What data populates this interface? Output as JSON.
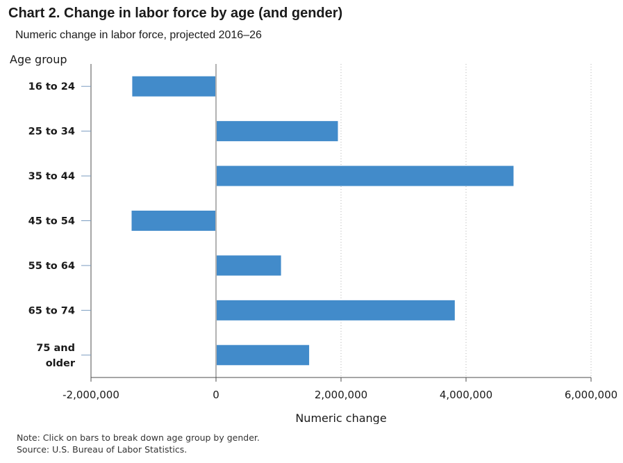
{
  "title": "Chart 2. Change in labor force by age (and gender)",
  "subtitle": "Numeric change in labor force, projected 2016–26",
  "notes": {
    "note": "Note: Click on bars to break down age group by gender.",
    "source": "Source: U.S. Bureau of Labor Statistics."
  },
  "colors": {
    "bar": "#428bca",
    "gridline": "#b0b0b0",
    "axis": "#4d4d4d"
  },
  "chart_data": {
    "type": "bar",
    "orientation": "horizontal",
    "ylabel": "Age group",
    "xlabel": "Numeric change",
    "categories": [
      [
        "16 to 24"
      ],
      [
        "25 to 34"
      ],
      [
        "35 to 44"
      ],
      [
        "45 to 54"
      ],
      [
        "55 to 64"
      ],
      [
        "65 to 74"
      ],
      [
        "75 and",
        "older"
      ]
    ],
    "values": [
      -1340000,
      1950000,
      4760000,
      -1350000,
      1040000,
      3820000,
      1490000
    ],
    "xlim": [
      -2000000,
      6000000
    ],
    "xticks": [
      -2000000,
      0,
      2000000,
      4000000,
      6000000
    ],
    "xtick_labels": [
      "-2,000,000",
      "0",
      "2,000,000",
      "4,000,000",
      "6,000,000"
    ],
    "grid": "vertical dotted",
    "legend": "none"
  }
}
